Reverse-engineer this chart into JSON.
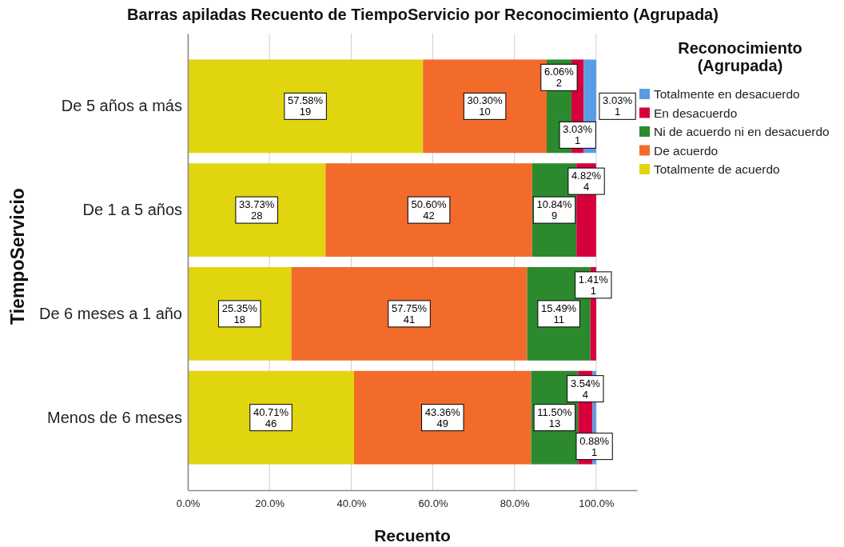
{
  "chart_data": {
    "type": "bar",
    "orientation": "horizontal",
    "stacked": true,
    "title": "Barras apiladas Recuento de TiempoServicio por Reconocimiento (Agrupada)",
    "xlabel": "Recuento",
    "ylabel": "TiempoServicio",
    "legend_title": "Reconocimiento (Agrupada)",
    "categories": [
      "De 5 años a más",
      "De 1 a 5 años",
      "De 6 meses a 1 año",
      "Menos de 6 meses"
    ],
    "series": [
      {
        "name": "Totalmente de acuerdo",
        "color": "#e1d510",
        "values": [
          57.58,
          33.73,
          25.35,
          40.71
        ],
        "value_labels": [
          "57.58%\n19",
          "33.73%\n28",
          "25.35%\n18",
          "40.71%\n46"
        ]
      },
      {
        "name": "De acuerdo",
        "color": "#f26b2b",
        "values": [
          30.3,
          50.6,
          57.75,
          43.36
        ],
        "value_labels": [
          "30.30%\n10",
          "50.60%\n42",
          "57.75%\n41",
          "43.36%\n49"
        ]
      },
      {
        "name": "Ni de acuerdo ni en desacuerdo",
        "color": "#2b8a2e",
        "values": [
          6.06,
          10.84,
          15.49,
          11.5
        ],
        "value_labels": [
          "6.06%\n2",
          "10.84%\n9",
          "15.49%\n11",
          "11.50%\n13"
        ]
      },
      {
        "name": "En desacuerdo",
        "color": "#d6003c",
        "values": [
          3.03,
          4.82,
          1.41,
          3.54
        ],
        "value_labels": [
          "3.03%\n1",
          "4.82%\n4",
          "1.41%\n1",
          "3.54%\n4"
        ]
      },
      {
        "name": "Totalmente en desacuerdo",
        "color": "#5a9be6",
        "values": [
          3.03,
          null,
          null,
          0.88
        ],
        "value_labels": [
          "3.03%\n1",
          null,
          null,
          "0.88%\n1"
        ]
      }
    ],
    "xlim": [
      0,
      110
    ],
    "xticks": [
      {
        "value": 0,
        "label": "0.0%"
      },
      {
        "value": 20,
        "label": "20.0%"
      },
      {
        "value": 40,
        "label": "40.0%"
      },
      {
        "value": 60,
        "label": "60.0%"
      },
      {
        "value": 80,
        "label": "80.0%"
      },
      {
        "value": 100,
        "label": "100.0%"
      }
    ],
    "grid": "x",
    "legend": "top right"
  }
}
